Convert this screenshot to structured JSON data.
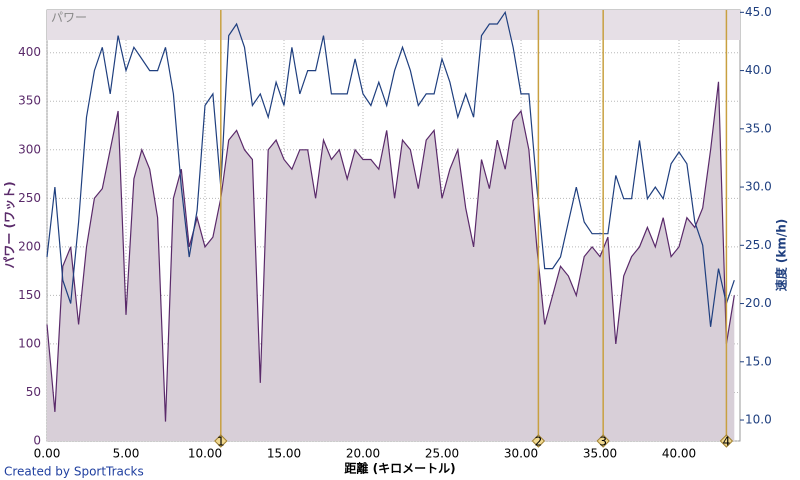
{
  "chart_data": {
    "type": "line",
    "title": "パワー",
    "x_label": "距離 (キロメートル)",
    "y_label": "パワー (ワット)",
    "y2_label": "速度 (km/h)",
    "credit": "Created by SportTracks",
    "grid": true,
    "x": [
      0,
      0.5,
      1,
      1.5,
      2,
      2.5,
      3,
      3.5,
      4,
      4.5,
      5,
      5.5,
      6,
      6.5,
      7,
      7.5,
      8,
      8.5,
      9,
      9.5,
      10,
      10.5,
      11,
      11.5,
      12,
      12.5,
      13,
      13.5,
      14,
      14.5,
      15,
      15.5,
      16,
      16.5,
      17,
      17.5,
      18,
      18.5,
      19,
      19.5,
      20,
      20.5,
      21,
      21.5,
      22,
      22.5,
      23,
      23.5,
      24,
      24.5,
      25,
      25.5,
      26,
      26.5,
      27,
      27.5,
      28,
      28.5,
      29,
      29.5,
      30,
      30.5,
      31,
      31.5,
      32,
      32.5,
      33,
      33.5,
      34,
      34.5,
      35,
      35.5,
      36,
      36.5,
      37,
      37.5,
      38,
      38.5,
      39,
      39.5,
      40,
      40.5,
      41,
      41.5,
      42,
      42.5,
      43,
      43.5
    ],
    "series": [
      {
        "name": "パワー",
        "color": "#5a2a6a",
        "area": true,
        "axis": "y",
        "values": [
          120,
          30,
          180,
          200,
          120,
          200,
          250,
          260,
          300,
          340,
          130,
          270,
          300,
          280,
          230,
          20,
          250,
          280,
          200,
          230,
          200,
          210,
          250,
          310,
          320,
          300,
          290,
          60,
          300,
          310,
          290,
          280,
          300,
          300,
          250,
          310,
          290,
          300,
          270,
          300,
          290,
          290,
          280,
          320,
          250,
          310,
          300,
          260,
          310,
          320,
          250,
          280,
          300,
          240,
          200,
          290,
          260,
          310,
          280,
          330,
          340,
          300,
          200,
          120,
          150,
          180,
          170,
          150,
          190,
          200,
          190,
          210,
          100,
          170,
          190,
          200,
          220,
          200,
          230,
          190,
          200,
          230,
          220,
          240,
          300,
          370,
          100,
          150
        ]
      },
      {
        "name": "速度",
        "color": "#1f3f7f",
        "area": false,
        "axis": "y2",
        "values": [
          24,
          30,
          22,
          20,
          27,
          36,
          40,
          42,
          38,
          43,
          40,
          42,
          41,
          40,
          40,
          42,
          38,
          30,
          24,
          28,
          37,
          38,
          30,
          43,
          44,
          42,
          37,
          38,
          36,
          39,
          37,
          42,
          38,
          40,
          40,
          43,
          38,
          38,
          38,
          41,
          38,
          37,
          39,
          37,
          40,
          42,
          40,
          37,
          38,
          38,
          41,
          39,
          36,
          38,
          36,
          43,
          44,
          44,
          45,
          42,
          38,
          38,
          30,
          23,
          23,
          24,
          27,
          30,
          27,
          26,
          26,
          26,
          31,
          29,
          29,
          34,
          29,
          30,
          29,
          32,
          33,
          32,
          27,
          25,
          18,
          23,
          20,
          22
        ]
      }
    ],
    "xlim": [
      0,
      43.86
    ],
    "xticks": [
      {
        "value": 0,
        "label": "0.00"
      },
      {
        "value": 5,
        "label": "5.00"
      },
      {
        "value": 10,
        "label": "10.00"
      },
      {
        "value": 15,
        "label": "15.00"
      },
      {
        "value": 20,
        "label": "20.00"
      },
      {
        "value": 25,
        "label": "25.00"
      },
      {
        "value": 30,
        "label": "30.00"
      },
      {
        "value": 35,
        "label": "35.00"
      },
      {
        "value": 40,
        "label": "40.00"
      }
    ],
    "ylim": [
      0,
      444
    ],
    "yticks": [
      0,
      50,
      100,
      150,
      200,
      250,
      300,
      350,
      400
    ],
    "y2lim": [
      8.2,
      45.2
    ],
    "y2ticks": [
      {
        "value": 10,
        "label": "10.0"
      },
      {
        "value": 15,
        "label": "15.0"
      },
      {
        "value": 20,
        "label": "20.0"
      },
      {
        "value": 25,
        "label": "25.0"
      },
      {
        "value": 30,
        "label": "30.0"
      },
      {
        "value": 35,
        "label": "35.0"
      },
      {
        "value": 40,
        "label": "40.0"
      },
      {
        "value": 45,
        "label": "45.0"
      }
    ],
    "laps": [
      {
        "x": 11.0,
        "label": "1"
      },
      {
        "x": 31.1,
        "label": "2"
      },
      {
        "x": 35.2,
        "label": "3"
      },
      {
        "x": 43.0,
        "label": "4"
      }
    ]
  }
}
